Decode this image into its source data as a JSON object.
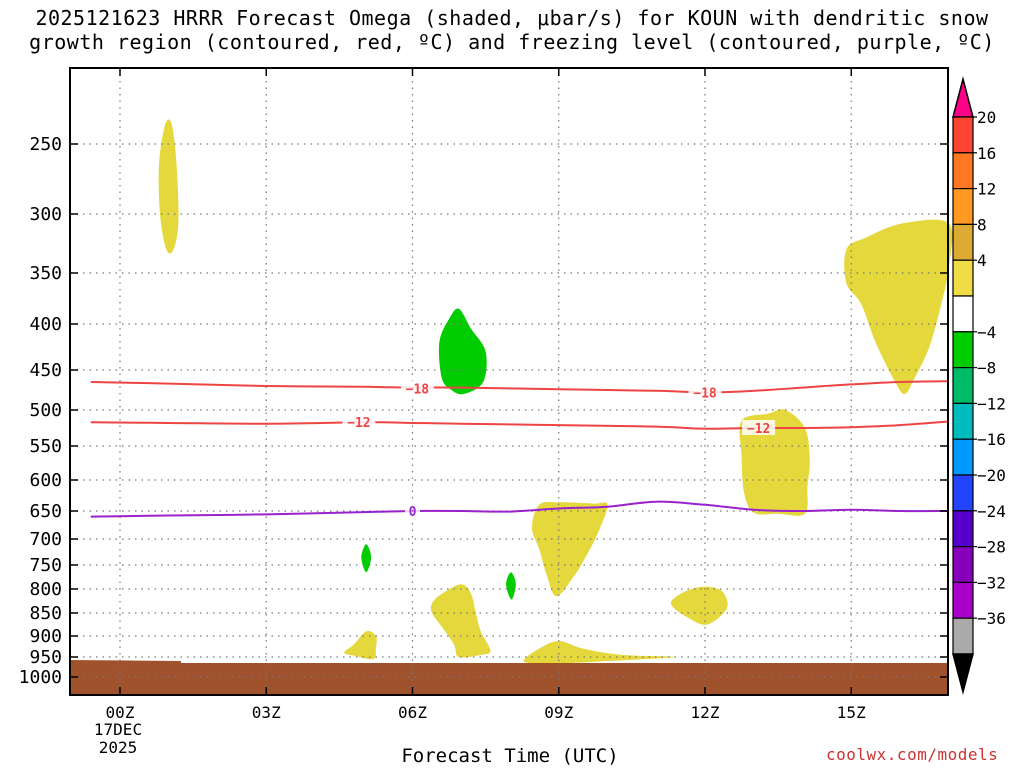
{
  "chart_data": {
    "type": "heatmap",
    "title_line1": "2025121623 HRRR Forecast Omega (shaded, μbar/s) for KOUN with dendritic snow",
    "title_line2": "growth region (contoured, red, ºC) and freezing level (contoured, purple, ºC)",
    "xlabel": "Forecast Time (UTC)",
    "credit": "coolwx.com/models",
    "x_ticks": [
      {
        "hour": 0,
        "label": "00Z",
        "sub1": "17DEC",
        "sub2": "2025"
      },
      {
        "hour": 3,
        "label": "03Z",
        "sub1": "",
        "sub2": ""
      },
      {
        "hour": 6,
        "label": "06Z",
        "sub1": "",
        "sub2": ""
      },
      {
        "hour": 9,
        "label": "09Z",
        "sub1": "",
        "sub2": ""
      },
      {
        "hour": 12,
        "label": "12Z",
        "sub1": "",
        "sub2": ""
      },
      {
        "hour": 15,
        "label": "15Z",
        "sub1": "",
        "sub2": ""
      }
    ],
    "xlim": [
      -0.6,
      17
    ],
    "y_ticks": [
      250,
      300,
      350,
      400,
      450,
      500,
      550,
      600,
      650,
      700,
      750,
      800,
      850,
      900,
      950,
      1000
    ],
    "ylim": [
      200,
      1030
    ],
    "ground_pressure": 965,
    "colorbar": {
      "labels": [
        "20",
        "16",
        "12",
        "8",
        "4",
        "−4",
        "−8",
        "−12",
        "−16",
        "−20",
        "−24",
        "−28",
        "−32",
        "−36"
      ],
      "colors": [
        "#ff0088",
        "#ff4433",
        "#ff7722",
        "#ff9922",
        "#ddaa33",
        "#eedd44",
        "#ffffff",
        "#00cc00",
        "#00bb66",
        "#00bbbb",
        "#0099ff",
        "#2244ff",
        "#5500cc",
        "#8800bb",
        "#aa00cc",
        "#aaaaaa",
        "#000000"
      ]
    },
    "contours": [
      {
        "name": "minus-18-isotherm",
        "color": "#ee4444",
        "label": "−18",
        "label_points": [
          {
            "t": 6.1,
            "p": 473
          },
          {
            "t": 12.0,
            "p": 478
          }
        ],
        "points": [
          [
            -0.6,
            465
          ],
          [
            1,
            467
          ],
          [
            3,
            470
          ],
          [
            5,
            471
          ],
          [
            6,
            472
          ],
          [
            7,
            472
          ],
          [
            9,
            474
          ],
          [
            11,
            476
          ],
          [
            12,
            478
          ],
          [
            13,
            476
          ],
          [
            14,
            472
          ],
          [
            15,
            468
          ],
          [
            16,
            465
          ],
          [
            17,
            464
          ]
        ]
      },
      {
        "name": "minus-12-isotherm",
        "color": "#ee4444",
        "label": "−12",
        "label_points": [
          {
            "t": 4.9,
            "p": 517
          },
          {
            "t": 13.1,
            "p": 525
          }
        ],
        "points": [
          [
            -0.6,
            517
          ],
          [
            1,
            518
          ],
          [
            3,
            519
          ],
          [
            5,
            517
          ],
          [
            6,
            518
          ],
          [
            7,
            519
          ],
          [
            9,
            521
          ],
          [
            11,
            523
          ],
          [
            12,
            526
          ],
          [
            13,
            525
          ],
          [
            14,
            525
          ],
          [
            15,
            524
          ],
          [
            16,
            521
          ],
          [
            17,
            516
          ]
        ]
      },
      {
        "name": "freezing-level",
        "color": "#9922cc",
        "label": "0",
        "label_points": [
          {
            "t": 6.0,
            "p": 650
          }
        ],
        "points": [
          [
            -0.6,
            660
          ],
          [
            1,
            658
          ],
          [
            3,
            656
          ],
          [
            5,
            652
          ],
          [
            6,
            650
          ],
          [
            7,
            650
          ],
          [
            8,
            651
          ],
          [
            9,
            646
          ],
          [
            10,
            643
          ],
          [
            11,
            635
          ],
          [
            12,
            640
          ],
          [
            13,
            648
          ],
          [
            14,
            650
          ],
          [
            15,
            648
          ],
          [
            16,
            650
          ],
          [
            17,
            650
          ]
        ]
      }
    ],
    "omega_regions": [
      {
        "name": "yellow-region-upper-01z",
        "color": "#e5d83c",
        "points": [
          [
            0.95,
            330
          ],
          [
            0.82,
            300
          ],
          [
            0.8,
            265
          ],
          [
            0.92,
            238
          ],
          [
            1.05,
            236
          ],
          [
            1.15,
            260
          ],
          [
            1.2,
            305
          ],
          [
            1.1,
            330
          ]
        ]
      },
      {
        "name": "green-region-07z",
        "color": "#00cc00",
        "points": [
          [
            6.6,
            460
          ],
          [
            6.55,
            420
          ],
          [
            6.75,
            395
          ],
          [
            6.95,
            385
          ],
          [
            7.2,
            405
          ],
          [
            7.5,
            430
          ],
          [
            7.45,
            465
          ],
          [
            7.05,
            480
          ],
          [
            6.8,
            475
          ]
        ]
      },
      {
        "name": "yellow-region-upper-right",
        "color": "#e5d83c",
        "points": [
          [
            14.9,
            330
          ],
          [
            15.3,
            320
          ],
          [
            16.05,
            308
          ],
          [
            17,
            308
          ],
          [
            17,
            345
          ],
          [
            16.85,
            380
          ],
          [
            16.6,
            425
          ],
          [
            16.3,
            460
          ],
          [
            16.1,
            480
          ],
          [
            15.9,
            465
          ],
          [
            15.5,
            420
          ],
          [
            15.2,
            380
          ],
          [
            14.9,
            360
          ]
        ]
      },
      {
        "name": "yellow-region-13z",
        "color": "#e5d83c",
        "points": [
          [
            12.75,
            515
          ],
          [
            13.3,
            505
          ],
          [
            13.65,
            500
          ],
          [
            14.05,
            525
          ],
          [
            14.15,
            570
          ],
          [
            14.1,
            610
          ],
          [
            14.05,
            655
          ],
          [
            13.5,
            655
          ],
          [
            13.0,
            653
          ],
          [
            12.8,
            620
          ],
          [
            12.75,
            565
          ]
        ]
      },
      {
        "name": "yellow-region-09z",
        "color": "#e5d83c",
        "points": [
          [
            8.6,
            640
          ],
          [
            9.0,
            636
          ],
          [
            9.7,
            638
          ],
          [
            10.0,
            640
          ],
          [
            9.8,
            690
          ],
          [
            9.55,
            735
          ],
          [
            9.3,
            775
          ],
          [
            8.95,
            815
          ],
          [
            8.75,
            770
          ],
          [
            8.6,
            720
          ],
          [
            8.45,
            680
          ]
        ]
      },
      {
        "name": "yellow-region-07z-low",
        "color": "#e5d83c",
        "points": [
          [
            6.4,
            830
          ],
          [
            6.6,
            810
          ],
          [
            7.0,
            790
          ],
          [
            7.2,
            810
          ],
          [
            7.3,
            850
          ],
          [
            7.4,
            890
          ],
          [
            7.6,
            935
          ],
          [
            7.4,
            945
          ],
          [
            6.95,
            950
          ],
          [
            6.85,
            920
          ],
          [
            6.6,
            880
          ],
          [
            6.4,
            850
          ]
        ]
      },
      {
        "name": "yellow-region-12z",
        "color": "#e5d83c",
        "points": [
          [
            11.3,
            830
          ],
          [
            11.6,
            805
          ],
          [
            12.0,
            795
          ],
          [
            12.35,
            805
          ],
          [
            12.45,
            840
          ],
          [
            12.05,
            875
          ],
          [
            11.65,
            860
          ]
        ]
      },
      {
        "name": "yellow-region-05z",
        "color": "#e5d83c",
        "points": [
          [
            4.6,
            940
          ],
          [
            4.8,
            920
          ],
          [
            5.05,
            890
          ],
          [
            5.25,
            900
          ],
          [
            5.25,
            930
          ],
          [
            5.2,
            955
          ],
          [
            4.85,
            948
          ]
        ]
      },
      {
        "name": "yellow-region-09z-low",
        "color": "#e5d83c",
        "points": [
          [
            8.3,
            955
          ],
          [
            8.6,
            930
          ],
          [
            9.0,
            912
          ],
          [
            9.5,
            930
          ],
          [
            10.3,
            945
          ],
          [
            11.4,
            950
          ],
          [
            10.0,
            960
          ],
          [
            9.2,
            965
          ],
          [
            8.4,
            965
          ]
        ]
      },
      {
        "name": "green-region-05z-small",
        "color": "#00cc00",
        "points": [
          [
            4.95,
            735
          ],
          [
            5.05,
            710
          ],
          [
            5.15,
            735
          ],
          [
            5.05,
            765
          ]
        ]
      },
      {
        "name": "green-region-08z-small",
        "color": "#00cc00",
        "points": [
          [
            7.92,
            790
          ],
          [
            8.02,
            765
          ],
          [
            8.12,
            790
          ],
          [
            8.03,
            822
          ]
        ]
      }
    ]
  }
}
